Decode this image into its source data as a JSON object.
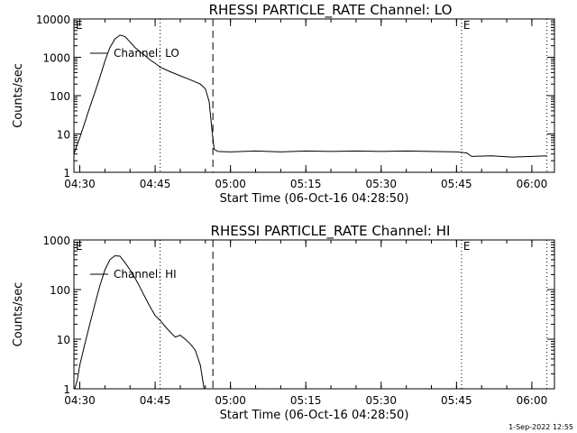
{
  "chart_data": [
    {
      "type": "line",
      "title": "RHESSI PARTICLE_RATE Channel: LO",
      "xlabel": "Start Time (06-Oct-16 04:28:50)",
      "ylabel": "Counts/sec",
      "yscale": "log",
      "ylim": [
        1,
        10000
      ],
      "xlim": [
        "04:28:50",
        "06:04:30"
      ],
      "x_ticks": [
        "04:30",
        "04:45",
        "05:00",
        "05:15",
        "05:30",
        "05:45",
        "06:00"
      ],
      "y_ticks": [
        "1",
        "10",
        "100",
        "1000",
        "10000"
      ],
      "legend": "top-left",
      "markers": [
        {
          "time": "04:46:00",
          "style": "dotted"
        },
        {
          "time": "04:56:30",
          "style": "dashed"
        },
        {
          "time": "05:46:00",
          "style": "dotted"
        },
        {
          "time": "06:03:00",
          "style": "dotted"
        }
      ],
      "corner_labels": [
        "E",
        "E"
      ],
      "series": [
        {
          "name": "Channel: LO",
          "points": [
            [
              "04:28:50",
              3
            ],
            [
              "04:30:00",
              8
            ],
            [
              "04:31:00",
              20
            ],
            [
              "04:32:00",
              50
            ],
            [
              "04:33:00",
              120
            ],
            [
              "04:34:00",
              300
            ],
            [
              "04:35:00",
              800
            ],
            [
              "04:36:00",
              1800
            ],
            [
              "04:37:00",
              3000
            ],
            [
              "04:38:00",
              3800
            ],
            [
              "04:39:00",
              3500
            ],
            [
              "04:40:00",
              2500
            ],
            [
              "04:41:00",
              1800
            ],
            [
              "04:42:00",
              1400
            ],
            [
              "04:43:00",
              1100
            ],
            [
              "04:44:00",
              850
            ],
            [
              "04:45:00",
              700
            ],
            [
              "04:46:00",
              550
            ],
            [
              "04:48:00",
              420
            ],
            [
              "04:50:00",
              330
            ],
            [
              "04:52:00",
              260
            ],
            [
              "04:54:00",
              200
            ],
            [
              "04:55:00",
              150
            ],
            [
              "04:55:45",
              70
            ],
            [
              "04:56:20",
              12
            ],
            [
              "04:56:45",
              4
            ],
            [
              "04:57:30",
              3.5
            ],
            [
              "05:00:00",
              3.4
            ],
            [
              "05:05:00",
              3.6
            ],
            [
              "05:10:00",
              3.4
            ],
            [
              "05:15:00",
              3.6
            ],
            [
              "05:20:00",
              3.5
            ],
            [
              "05:25:00",
              3.6
            ],
            [
              "05:30:00",
              3.5
            ],
            [
              "05:35:00",
              3.6
            ],
            [
              "05:40:00",
              3.5
            ],
            [
              "05:45:00",
              3.4
            ],
            [
              "05:47:00",
              3.2
            ],
            [
              "05:48:00",
              2.6
            ],
            [
              "05:52:00",
              2.7
            ],
            [
              "05:56:00",
              2.5
            ],
            [
              "06:00:00",
              2.6
            ],
            [
              "06:03:00",
              2.7
            ]
          ]
        }
      ]
    },
    {
      "type": "line",
      "title": "RHESSI PARTICLE_RATE Channel: HI",
      "xlabel": "Start Time (06-Oct-16 04:28:50)",
      "ylabel": "Counts/sec",
      "yscale": "log",
      "ylim": [
        1,
        1000
      ],
      "xlim": [
        "04:28:50",
        "06:04:30"
      ],
      "x_ticks": [
        "04:30",
        "04:45",
        "05:00",
        "05:15",
        "05:30",
        "05:45",
        "06:00"
      ],
      "y_ticks": [
        "1",
        "10",
        "100",
        "1000"
      ],
      "legend": "top-left",
      "markers": [
        {
          "time": "04:46:00",
          "style": "dotted"
        },
        {
          "time": "04:56:30",
          "style": "dashed"
        },
        {
          "time": "05:46:00",
          "style": "dotted"
        },
        {
          "time": "06:03:00",
          "style": "dotted"
        }
      ],
      "corner_labels": [
        "E",
        "E"
      ],
      "series": [
        {
          "name": "Channel: HI",
          "points": [
            [
              "04:29:00",
              1
            ],
            [
              "04:29:30",
              1.5
            ],
            [
              "04:30:00",
              3
            ],
            [
              "04:31:00",
              8
            ],
            [
              "04:32:00",
              20
            ],
            [
              "04:33:00",
              50
            ],
            [
              "04:34:00",
              120
            ],
            [
              "04:35:00",
              250
            ],
            [
              "04:36:00",
              400
            ],
            [
              "04:37:00",
              480
            ],
            [
              "04:38:00",
              470
            ],
            [
              "04:39:00",
              350
            ],
            [
              "04:40:00",
              250
            ],
            [
              "04:41:00",
              170
            ],
            [
              "04:42:00",
              110
            ],
            [
              "04:43:00",
              70
            ],
            [
              "04:44:00",
              45
            ],
            [
              "04:45:00",
              30
            ],
            [
              "04:46:00",
              24
            ],
            [
              "04:47:00",
              18
            ],
            [
              "04:48:00",
              14
            ],
            [
              "04:49:00",
              11
            ],
            [
              "04:50:00",
              12
            ],
            [
              "04:51:00",
              10
            ],
            [
              "04:52:00",
              8
            ],
            [
              "04:53:00",
              6
            ],
            [
              "04:54:00",
              3
            ],
            [
              "04:54:45",
              1
            ]
          ]
        }
      ]
    }
  ],
  "footer": {
    "timestamp": "1-Sep-2022 12:55"
  }
}
